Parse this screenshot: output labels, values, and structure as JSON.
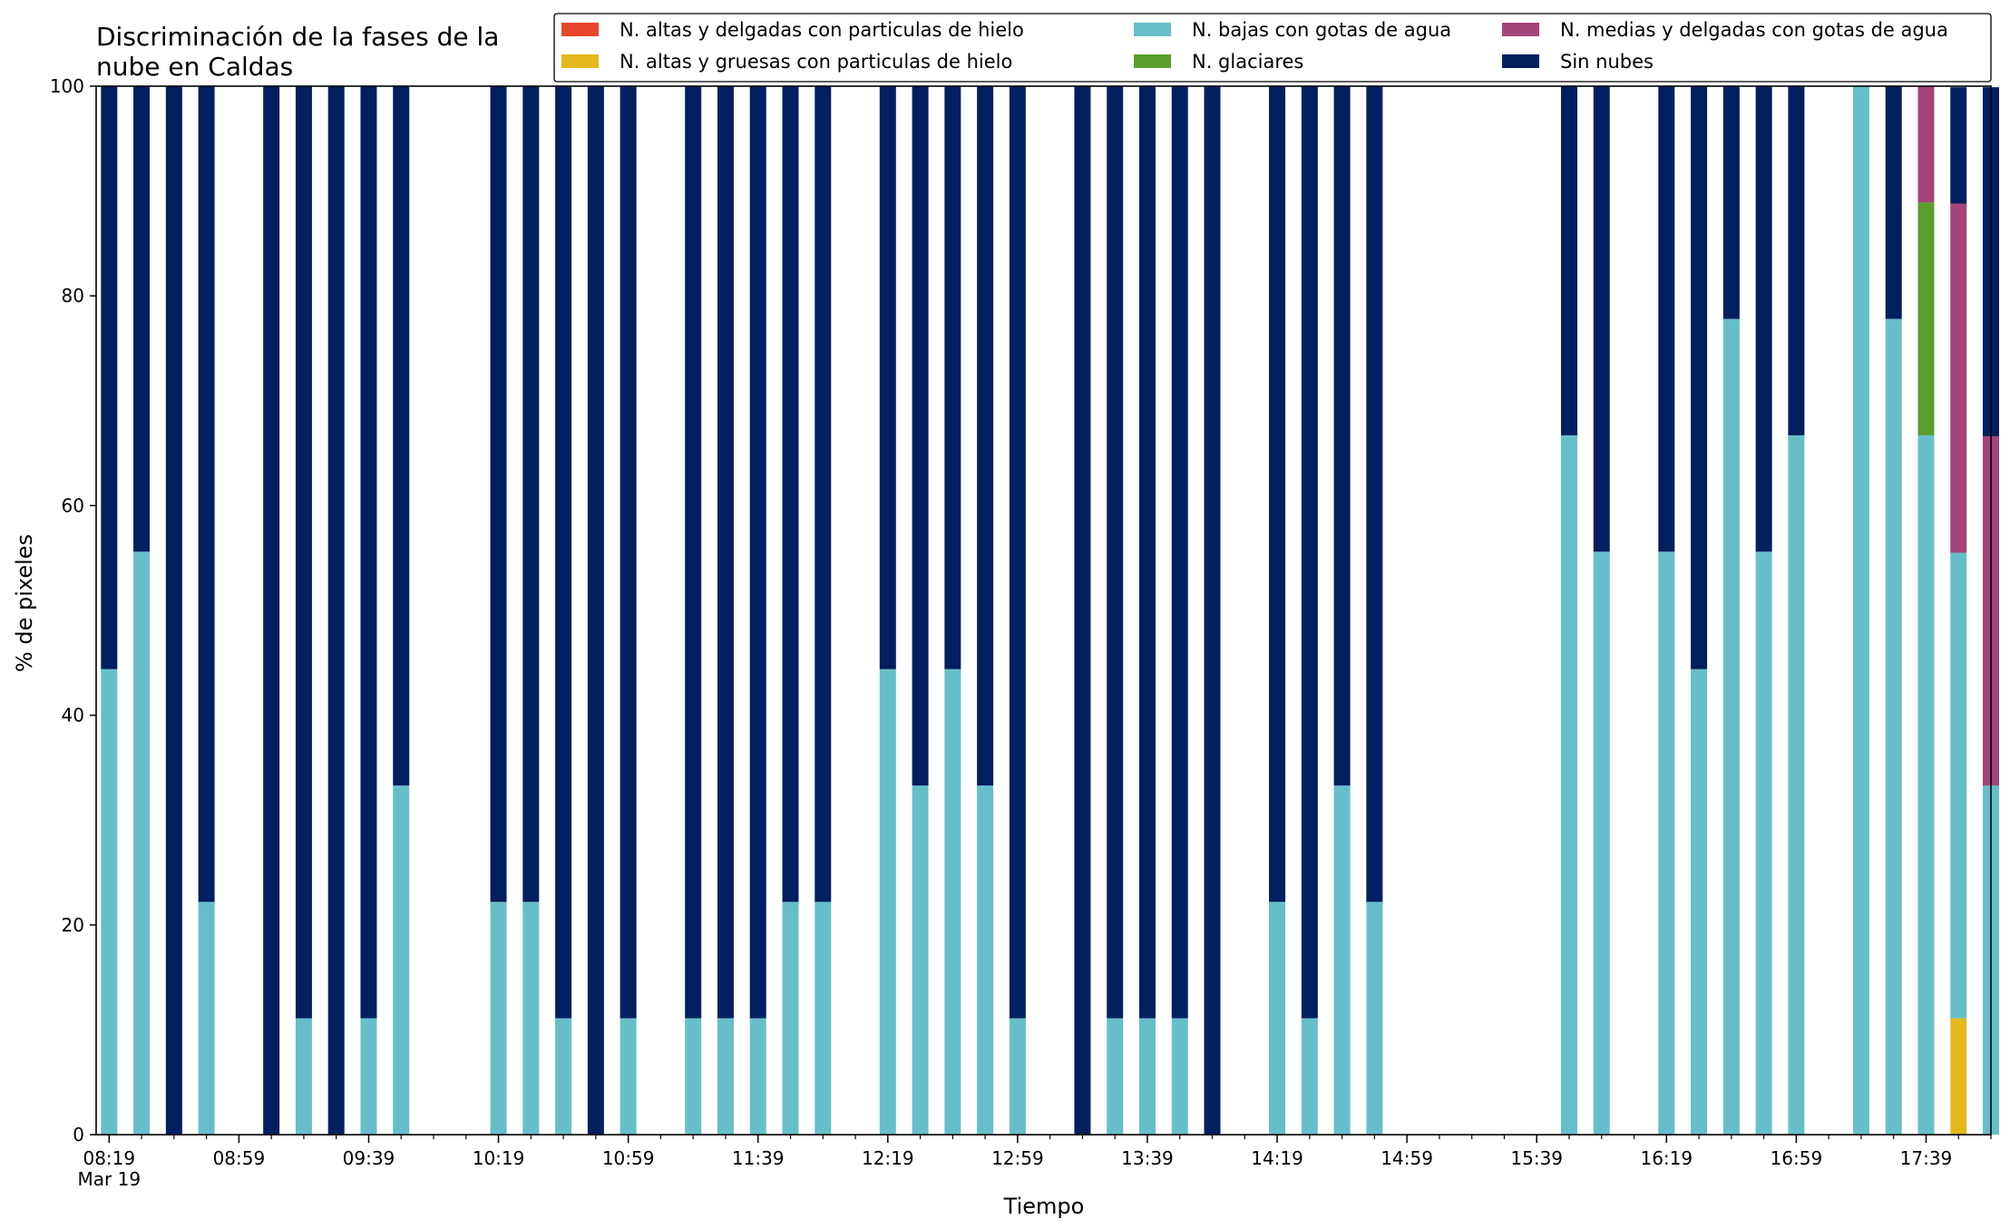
{
  "chart_data": {
    "type": "bar",
    "stacked": true,
    "title_lines": [
      "Discriminación de la fases de la",
      "nube en Caldas"
    ],
    "xlabel": "Tiempo",
    "ylabel": "% de pixeles",
    "ylim": [
      0,
      100
    ],
    "yticks": [
      0,
      20,
      40,
      60,
      80,
      100
    ],
    "xlim": [
      "08:15",
      "17:59"
    ],
    "xtick_labels": [
      "08:19",
      "08:59",
      "09:39",
      "10:19",
      "10:59",
      "11:39",
      "12:19",
      "12:59",
      "13:39",
      "14:19",
      "14:59",
      "15:39",
      "16:19",
      "16:59",
      "17:39"
    ],
    "xtick_date_label": "Mar 19",
    "minor_tick_interval_minutes": 10,
    "grid": false,
    "legend_position": "top-right",
    "series": [
      {
        "key": "altas_delgadas",
        "name": "N. altas y delgadas con particulas de hielo",
        "color": "#e8472b"
      },
      {
        "key": "altas_gruesas",
        "name": "N. altas y gruesas con particulas de hielo",
        "color": "#e3b81c"
      },
      {
        "key": "bajas_agua",
        "name": "N. bajas con gotas de agua",
        "color": "#67becb"
      },
      {
        "key": "glaciares",
        "name": "N. glaciares",
        "color": "#5b9e2d"
      },
      {
        "key": "medias_agua",
        "name": "N. medias y delgadas con gotas de agua",
        "color": "#a3457a"
      },
      {
        "key": "sin_nubes",
        "name": "Sin nubes",
        "color": "#021f5f"
      }
    ],
    "stack_order": [
      "altas_gruesas",
      "bajas_agua",
      "glaciares",
      "medias_agua",
      "altas_delgadas",
      "sin_nubes"
    ],
    "bars": [
      {
        "time": "08:19",
        "bajas_agua": 44.4,
        "sin_nubes": 55.6
      },
      {
        "time": "08:29",
        "bajas_agua": 55.6,
        "sin_nubes": 44.4
      },
      {
        "time": "08:39",
        "bajas_agua": 0,
        "sin_nubes": 100
      },
      {
        "time": "08:49",
        "bajas_agua": 22.2,
        "sin_nubes": 77.8
      },
      {
        "time": "09:09",
        "bajas_agua": 0,
        "sin_nubes": 100
      },
      {
        "time": "09:19",
        "bajas_agua": 11.1,
        "sin_nubes": 88.9
      },
      {
        "time": "09:29",
        "bajas_agua": 0,
        "sin_nubes": 100
      },
      {
        "time": "09:39",
        "bajas_agua": 11.1,
        "sin_nubes": 88.9
      },
      {
        "time": "09:49",
        "bajas_agua": 33.3,
        "sin_nubes": 66.7
      },
      {
        "time": "10:19",
        "bajas_agua": 22.2,
        "sin_nubes": 77.8
      },
      {
        "time": "10:29",
        "bajas_agua": 22.2,
        "sin_nubes": 77.8
      },
      {
        "time": "10:39",
        "bajas_agua": 11.1,
        "sin_nubes": 88.9
      },
      {
        "time": "10:49",
        "bajas_agua": 0,
        "sin_nubes": 100
      },
      {
        "time": "10:59",
        "bajas_agua": 11.1,
        "sin_nubes": 88.9
      },
      {
        "time": "11:19",
        "bajas_agua": 11.1,
        "sin_nubes": 88.9
      },
      {
        "time": "11:29",
        "bajas_agua": 11.1,
        "sin_nubes": 88.9
      },
      {
        "time": "11:39",
        "bajas_agua": 11.1,
        "sin_nubes": 88.9
      },
      {
        "time": "11:49",
        "bajas_agua": 22.2,
        "sin_nubes": 77.8
      },
      {
        "time": "11:59",
        "bajas_agua": 22.2,
        "sin_nubes": 77.8
      },
      {
        "time": "12:19",
        "bajas_agua": 44.4,
        "sin_nubes": 55.6
      },
      {
        "time": "12:29",
        "bajas_agua": 33.3,
        "sin_nubes": 66.7
      },
      {
        "time": "12:39",
        "bajas_agua": 44.4,
        "sin_nubes": 55.6
      },
      {
        "time": "12:49",
        "bajas_agua": 33.3,
        "sin_nubes": 66.7
      },
      {
        "time": "12:59",
        "bajas_agua": 11.1,
        "sin_nubes": 88.9
      },
      {
        "time": "13:19",
        "bajas_agua": 0,
        "sin_nubes": 100
      },
      {
        "time": "13:29",
        "bajas_agua": 11.1,
        "sin_nubes": 88.9
      },
      {
        "time": "13:39",
        "bajas_agua": 11.1,
        "sin_nubes": 88.9
      },
      {
        "time": "13:49",
        "bajas_agua": 11.1,
        "sin_nubes": 88.9
      },
      {
        "time": "13:59",
        "bajas_agua": 0,
        "sin_nubes": 100
      },
      {
        "time": "14:19",
        "bajas_agua": 22.2,
        "sin_nubes": 77.8
      },
      {
        "time": "14:29",
        "bajas_agua": 11.1,
        "sin_nubes": 88.9
      },
      {
        "time": "14:39",
        "bajas_agua": 33.3,
        "sin_nubes": 66.7
      },
      {
        "time": "14:49",
        "bajas_agua": 22.2,
        "sin_nubes": 77.8
      },
      {
        "time": "15:49",
        "bajas_agua": 66.7,
        "sin_nubes": 33.3
      },
      {
        "time": "15:59",
        "bajas_agua": 55.6,
        "sin_nubes": 44.4
      },
      {
        "time": "16:19",
        "bajas_agua": 55.6,
        "sin_nubes": 44.4
      },
      {
        "time": "16:29",
        "bajas_agua": 44.4,
        "sin_nubes": 55.6
      },
      {
        "time": "16:39",
        "bajas_agua": 77.8,
        "sin_nubes": 22.2
      },
      {
        "time": "16:49",
        "bajas_agua": 55.6,
        "sin_nubes": 44.4
      },
      {
        "time": "16:59",
        "bajas_agua": 66.7,
        "sin_nubes": 33.3
      },
      {
        "time": "17:19",
        "bajas_agua": 100,
        "sin_nubes": 0
      },
      {
        "time": "17:29",
        "bajas_agua": 77.8,
        "sin_nubes": 22.2
      },
      {
        "time": "17:39",
        "bajas_agua": 66.7,
        "glaciares": 22.2,
        "medias_agua": 11.1
      },
      {
        "time": "17:49",
        "altas_gruesas": 11.1,
        "bajas_agua": 44.4,
        "medias_agua": 33.3,
        "sin_nubes": 11.1
      },
      {
        "time": "17:59",
        "bajas_agua": 33.3,
        "medias_agua": 33.3,
        "sin_nubes": 33.3
      }
    ]
  }
}
